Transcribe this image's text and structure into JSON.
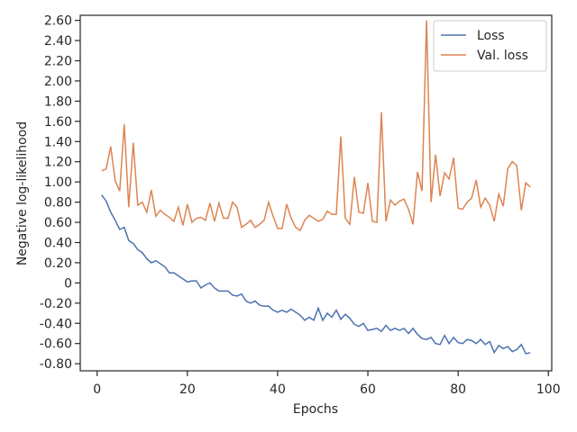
{
  "chart_data": {
    "type": "line",
    "xlabel": "Epochs",
    "ylabel": "Negative log-likelihood",
    "x": [
      1,
      2,
      3,
      4,
      5,
      6,
      7,
      8,
      9,
      10,
      11,
      12,
      13,
      14,
      15,
      16,
      17,
      18,
      19,
      20,
      21,
      22,
      23,
      24,
      25,
      26,
      27,
      28,
      29,
      30,
      31,
      32,
      33,
      34,
      35,
      36,
      37,
      38,
      39,
      40,
      41,
      42,
      43,
      44,
      45,
      46,
      47,
      48,
      49,
      50,
      51,
      52,
      53,
      54,
      55,
      56,
      57,
      58,
      59,
      60,
      61,
      62,
      63,
      64,
      65,
      66,
      67,
      68,
      69,
      70,
      71,
      72,
      73,
      74,
      75,
      76,
      77,
      78,
      79,
      80,
      81,
      82,
      83,
      84,
      85,
      86,
      87,
      88,
      89,
      90,
      91,
      92,
      93,
      94,
      95,
      96
    ],
    "series": [
      {
        "name": "Loss",
        "color": "#4c72b0",
        "values": [
          0.87,
          0.81,
          0.7,
          0.62,
          0.53,
          0.55,
          0.42,
          0.39,
          0.33,
          0.3,
          0.24,
          0.2,
          0.22,
          0.19,
          0.16,
          0.1,
          0.1,
          0.07,
          0.04,
          0.01,
          0.02,
          0.02,
          -0.05,
          -0.02,
          0.0,
          -0.05,
          -0.08,
          -0.08,
          -0.08,
          -0.12,
          -0.13,
          -0.11,
          -0.18,
          -0.2,
          -0.18,
          -0.22,
          -0.23,
          -0.23,
          -0.27,
          -0.29,
          -0.27,
          -0.29,
          -0.26,
          -0.29,
          -0.32,
          -0.37,
          -0.34,
          -0.37,
          -0.25,
          -0.37,
          -0.3,
          -0.34,
          -0.27,
          -0.36,
          -0.31,
          -0.35,
          -0.41,
          -0.43,
          -0.4,
          -0.47,
          -0.46,
          -0.45,
          -0.48,
          -0.42,
          -0.47,
          -0.45,
          -0.47,
          -0.45,
          -0.5,
          -0.45,
          -0.51,
          -0.55,
          -0.56,
          -0.54,
          -0.6,
          -0.61,
          -0.52,
          -0.6,
          -0.54,
          -0.59,
          -0.6,
          -0.56,
          -0.57,
          -0.6,
          -0.56,
          -0.61,
          -0.58,
          -0.69,
          -0.62,
          -0.65,
          -0.63,
          -0.68,
          -0.66,
          -0.61,
          -0.7,
          -0.69
        ]
      },
      {
        "name": "Val. loss",
        "color": "#dd8452",
        "values": [
          1.11,
          1.13,
          1.35,
          1.01,
          0.91,
          1.57,
          0.75,
          1.39,
          0.77,
          0.8,
          0.7,
          0.92,
          0.66,
          0.72,
          0.68,
          0.65,
          0.61,
          0.75,
          0.57,
          0.78,
          0.6,
          0.64,
          0.65,
          0.62,
          0.79,
          0.61,
          0.79,
          0.64,
          0.64,
          0.8,
          0.75,
          0.55,
          0.58,
          0.62,
          0.55,
          0.58,
          0.62,
          0.8,
          0.66,
          0.54,
          0.54,
          0.78,
          0.64,
          0.55,
          0.52,
          0.62,
          0.67,
          0.64,
          0.61,
          0.63,
          0.71,
          0.68,
          0.68,
          1.45,
          0.64,
          0.58,
          1.05,
          0.7,
          0.69,
          0.99,
          0.61,
          0.6,
          1.69,
          0.61,
          0.82,
          0.77,
          0.81,
          0.83,
          0.73,
          0.58,
          1.1,
          0.91,
          2.6,
          0.8,
          1.27,
          0.86,
          1.09,
          1.03,
          1.24,
          0.74,
          0.73,
          0.8,
          0.84,
          1.02,
          0.75,
          0.84,
          0.77,
          0.61,
          0.88,
          0.76,
          1.13,
          1.2,
          1.16,
          0.72,
          0.99,
          0.95
        ]
      }
    ],
    "xlim": [
      -3.75,
      100.75
    ],
    "xticks": [
      0,
      20,
      40,
      60,
      80,
      100
    ],
    "ylim": [
      -0.87,
      2.65
    ],
    "yticks": [
      {
        "value": -0.8,
        "label": "-0.80"
      },
      {
        "value": -0.6,
        "label": "-0.60"
      },
      {
        "value": -0.4,
        "label": "-0.40"
      },
      {
        "value": -0.2,
        "label": "-0.20"
      },
      0,
      {
        "value": 0.2,
        "label": "0.20"
      },
      {
        "value": 0.4,
        "label": "0.40"
      },
      {
        "value": 0.6,
        "label": "0.60"
      },
      {
        "value": 0.8,
        "label": "0.80"
      },
      {
        "value": 1.0,
        "label": "1.00"
      },
      {
        "value": 1.2,
        "label": "1.20"
      },
      {
        "value": 1.4,
        "label": "1.40"
      },
      {
        "value": 1.6,
        "label": "1.60"
      },
      {
        "value": 1.8,
        "label": "1.80"
      },
      {
        "value": 2.0,
        "label": "2.00"
      },
      {
        "value": 2.2,
        "label": "2.20"
      },
      {
        "value": 2.4,
        "label": "2.40"
      },
      {
        "value": 2.6,
        "label": "2.60"
      }
    ],
    "grid": false,
    "legend": "upper right"
  }
}
